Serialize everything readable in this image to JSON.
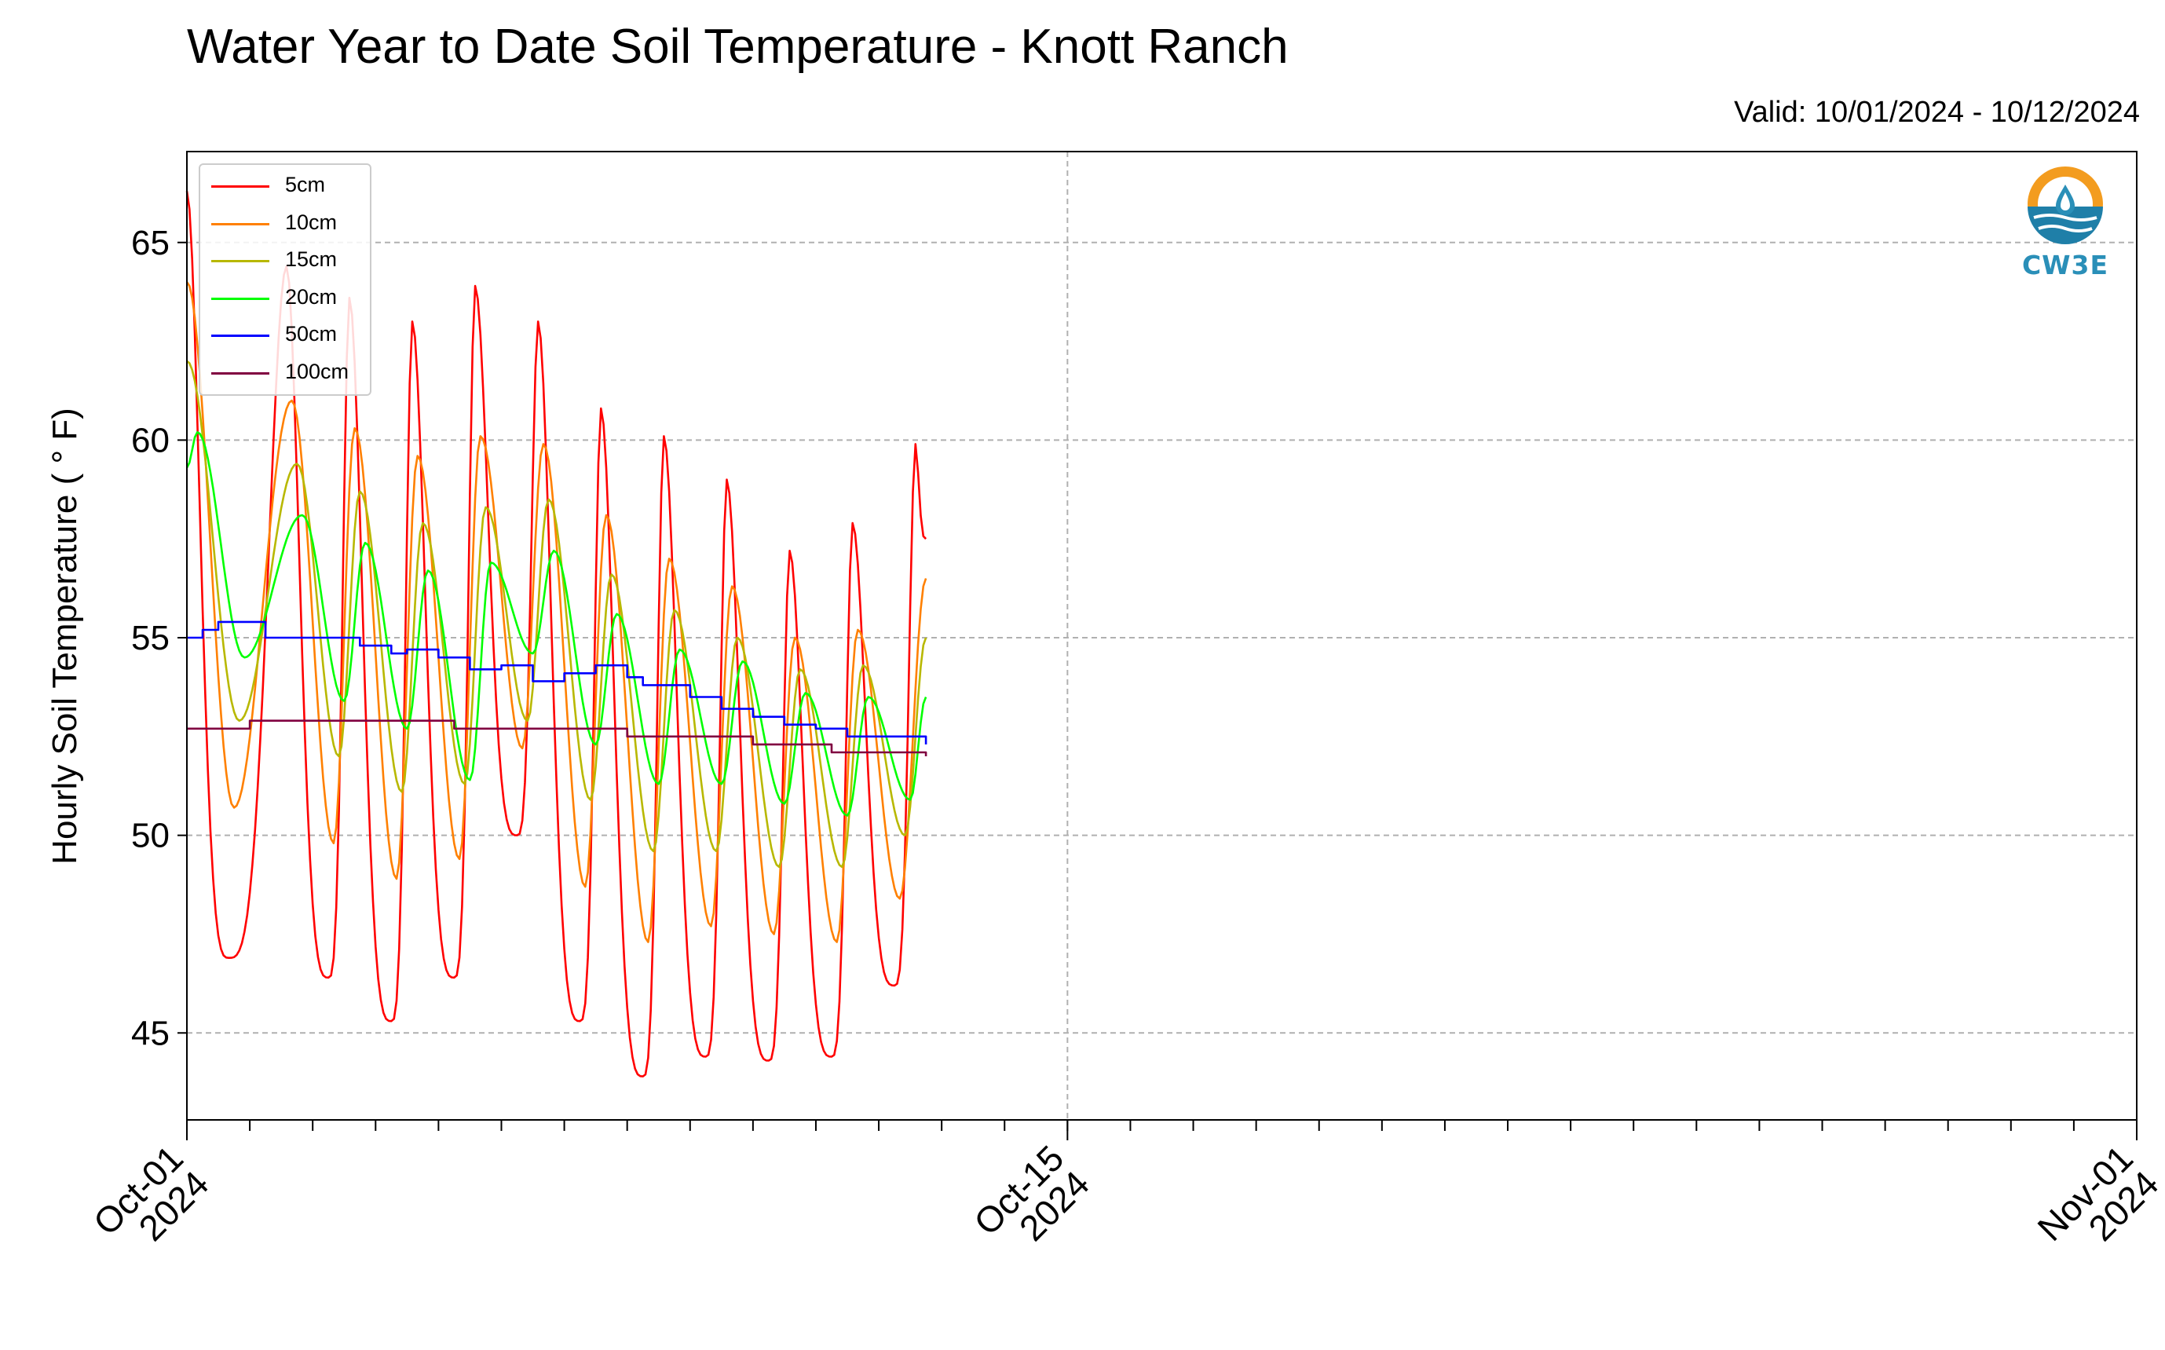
{
  "title": "Water Year to Date Soil Temperature - Knott Ranch",
  "valid_label": "Valid: 10/01/2024 - 10/12/2024",
  "logo": {
    "name": "cw3e-logo",
    "text": "CW3E",
    "colors": [
      "#f39c1f",
      "#2a8fb8"
    ]
  },
  "chart_data": {
    "type": "line",
    "title": "Water Year to Date Soil Temperature - Knott Ranch",
    "ylabel": "Hourly Soil Temperature ( ° F)",
    "xlabel": "",
    "ylim": [
      42.8,
      67.3
    ],
    "xlim": [
      "2024-10-01",
      "2024-11-01"
    ],
    "y_ticks": [
      45,
      50,
      55,
      60,
      65
    ],
    "x_major_ticks": [
      {
        "date": "2024-10-01",
        "label_line1": "Oct-01",
        "label_line2": "2024"
      },
      {
        "date": "2024-10-15",
        "label_line1": "Oct-15",
        "label_line2": "2024"
      },
      {
        "date": "2024-11-01",
        "label_line1": "Nov-01",
        "label_line2": "2024"
      }
    ],
    "x_minor_tick_interval": "1 day",
    "grid": true,
    "legend_position": "top-left",
    "peak_hour": 14,
    "series": [
      {
        "name": "5cm",
        "color": "#ff0000",
        "amplitude_mode": "sharp",
        "points": [
          [
            "2024-10-01 00:00",
            66.3
          ],
          [
            "2024-10-01 16:00",
            46.9
          ],
          [
            "2024-10-02 14:00",
            64.4
          ],
          [
            "2024-10-03 06:00",
            46.4
          ],
          [
            "2024-10-03 14:00",
            63.6
          ],
          [
            "2024-10-04 06:00",
            45.3
          ],
          [
            "2024-10-04 14:00",
            63.0
          ],
          [
            "2024-10-05 06:00",
            46.4
          ],
          [
            "2024-10-05 14:00",
            63.9
          ],
          [
            "2024-10-06 06:00",
            50.0
          ],
          [
            "2024-10-06 14:00",
            63.0
          ],
          [
            "2024-10-07 06:00",
            45.3
          ],
          [
            "2024-10-07 14:00",
            60.8
          ],
          [
            "2024-10-08 06:00",
            43.9
          ],
          [
            "2024-10-08 14:00",
            60.1
          ],
          [
            "2024-10-09 06:00",
            44.4
          ],
          [
            "2024-10-09 14:00",
            59.0
          ],
          [
            "2024-10-10 06:00",
            44.3
          ],
          [
            "2024-10-10 14:00",
            57.2
          ],
          [
            "2024-10-11 06:00",
            44.4
          ],
          [
            "2024-10-11 14:00",
            57.9
          ],
          [
            "2024-10-12 06:00",
            46.2
          ],
          [
            "2024-10-12 14:00",
            59.9
          ],
          [
            "2024-10-12 18:00",
            57.5
          ]
        ]
      },
      {
        "name": "10cm",
        "color": "#ff8000",
        "amplitude_mode": "smooth",
        "points": [
          [
            "2024-10-01 00:00",
            64.0
          ],
          [
            "2024-10-01 18:00",
            50.7
          ],
          [
            "2024-10-02 16:00",
            61.0
          ],
          [
            "2024-10-03 08:00",
            49.8
          ],
          [
            "2024-10-03 16:00",
            60.3
          ],
          [
            "2024-10-04 08:00",
            48.9
          ],
          [
            "2024-10-04 16:00",
            59.6
          ],
          [
            "2024-10-05 08:00",
            49.4
          ],
          [
            "2024-10-05 16:00",
            60.1
          ],
          [
            "2024-10-06 08:00",
            52.2
          ],
          [
            "2024-10-06 16:00",
            59.9
          ],
          [
            "2024-10-07 08:00",
            48.7
          ],
          [
            "2024-10-07 16:00",
            58.1
          ],
          [
            "2024-10-08 08:00",
            47.3
          ],
          [
            "2024-10-08 16:00",
            57.0
          ],
          [
            "2024-10-09 08:00",
            47.7
          ],
          [
            "2024-10-09 16:00",
            56.3
          ],
          [
            "2024-10-10 08:00",
            47.5
          ],
          [
            "2024-10-10 16:00",
            55.0
          ],
          [
            "2024-10-11 08:00",
            47.3
          ],
          [
            "2024-10-11 16:00",
            55.2
          ],
          [
            "2024-10-12 08:00",
            48.4
          ],
          [
            "2024-10-12 18:00",
            56.5
          ]
        ]
      },
      {
        "name": "15cm",
        "color": "#b8b800",
        "amplitude_mode": "smooth",
        "points": [
          [
            "2024-10-01 00:00",
            62.0
          ],
          [
            "2024-10-01 20:00",
            52.9
          ],
          [
            "2024-10-02 18:00",
            59.4
          ],
          [
            "2024-10-03 10:00",
            52.0
          ],
          [
            "2024-10-03 18:00",
            58.7
          ],
          [
            "2024-10-04 10:00",
            51.1
          ],
          [
            "2024-10-04 18:00",
            57.9
          ],
          [
            "2024-10-05 10:00",
            51.3
          ],
          [
            "2024-10-05 18:00",
            58.3
          ],
          [
            "2024-10-06 10:00",
            52.9
          ],
          [
            "2024-10-06 18:00",
            58.5
          ],
          [
            "2024-10-07 10:00",
            50.9
          ],
          [
            "2024-10-07 18:00",
            56.6
          ],
          [
            "2024-10-08 10:00",
            49.6
          ],
          [
            "2024-10-08 18:00",
            55.7
          ],
          [
            "2024-10-09 10:00",
            49.6
          ],
          [
            "2024-10-09 18:00",
            55.0
          ],
          [
            "2024-10-10 10:00",
            49.2
          ],
          [
            "2024-10-10 18:00",
            54.2
          ],
          [
            "2024-10-11 10:00",
            49.2
          ],
          [
            "2024-10-11 18:00",
            54.3
          ],
          [
            "2024-10-12 10:00",
            50.0
          ],
          [
            "2024-10-12 18:00",
            55.0
          ]
        ]
      },
      {
        "name": "20cm",
        "color": "#00ff00",
        "amplitude_mode": "smooth",
        "points": [
          [
            "2024-10-01 00:00",
            59.3
          ],
          [
            "2024-10-01 04:00",
            60.2
          ],
          [
            "2024-10-01 22:00",
            54.5
          ],
          [
            "2024-10-02 20:00",
            58.1
          ],
          [
            "2024-10-03 12:00",
            53.4
          ],
          [
            "2024-10-03 20:00",
            57.4
          ],
          [
            "2024-10-04 12:00",
            52.7
          ],
          [
            "2024-10-04 20:00",
            56.7
          ],
          [
            "2024-10-05 12:00",
            51.4
          ],
          [
            "2024-10-05 20:00",
            56.9
          ],
          [
            "2024-10-06 12:00",
            54.6
          ],
          [
            "2024-10-06 20:00",
            57.2
          ],
          [
            "2024-10-07 12:00",
            52.3
          ],
          [
            "2024-10-07 20:00",
            55.6
          ],
          [
            "2024-10-08 12:00",
            51.3
          ],
          [
            "2024-10-08 20:00",
            54.7
          ],
          [
            "2024-10-09 12:00",
            51.3
          ],
          [
            "2024-10-09 20:00",
            54.4
          ],
          [
            "2024-10-10 12:00",
            50.8
          ],
          [
            "2024-10-10 20:00",
            53.6
          ],
          [
            "2024-10-11 12:00",
            50.5
          ],
          [
            "2024-10-11 20:00",
            53.5
          ],
          [
            "2024-10-12 12:00",
            50.9
          ],
          [
            "2024-10-12 18:00",
            53.5
          ]
        ]
      },
      {
        "name": "50cm",
        "color": "#0000ff",
        "amplitude_mode": "step",
        "points": [
          [
            "2024-10-01 00:00",
            55.0
          ],
          [
            "2024-10-01 06:00",
            55.2
          ],
          [
            "2024-10-01 12:00",
            55.4
          ],
          [
            "2024-10-02 00:00",
            55.4
          ],
          [
            "2024-10-02 06:00",
            55.0
          ],
          [
            "2024-10-03 18:00",
            54.8
          ],
          [
            "2024-10-04 06:00",
            54.6
          ],
          [
            "2024-10-04 12:00",
            54.7
          ],
          [
            "2024-10-05 00:00",
            54.5
          ],
          [
            "2024-10-05 12:00",
            54.2
          ],
          [
            "2024-10-06 00:00",
            54.3
          ],
          [
            "2024-10-06 12:00",
            53.9
          ],
          [
            "2024-10-07 00:00",
            54.1
          ],
          [
            "2024-10-07 12:00",
            54.3
          ],
          [
            "2024-10-08 00:00",
            54.0
          ],
          [
            "2024-10-08 06:00",
            53.8
          ],
          [
            "2024-10-09 00:00",
            53.5
          ],
          [
            "2024-10-09 12:00",
            53.2
          ],
          [
            "2024-10-10 00:00",
            53.0
          ],
          [
            "2024-10-10 12:00",
            52.8
          ],
          [
            "2024-10-11 00:00",
            52.7
          ],
          [
            "2024-10-11 12:00",
            52.5
          ],
          [
            "2024-10-12 00:00",
            52.5
          ],
          [
            "2024-10-12 18:00",
            52.3
          ]
        ]
      },
      {
        "name": "100cm",
        "color": "#800040",
        "amplitude_mode": "step",
        "points": [
          [
            "2024-10-01 00:00",
            52.7
          ],
          [
            "2024-10-02 00:00",
            52.9
          ],
          [
            "2024-10-04 00:00",
            52.9
          ],
          [
            "2024-10-05 06:00",
            52.7
          ],
          [
            "2024-10-07 18:00",
            52.7
          ],
          [
            "2024-10-08 00:00",
            52.5
          ],
          [
            "2024-10-09 18:00",
            52.5
          ],
          [
            "2024-10-10 00:00",
            52.3
          ],
          [
            "2024-10-11 00:00",
            52.3
          ],
          [
            "2024-10-11 06:00",
            52.1
          ],
          [
            "2024-10-12 12:00",
            52.1
          ],
          [
            "2024-10-12 18:00",
            52.0
          ]
        ]
      }
    ]
  }
}
